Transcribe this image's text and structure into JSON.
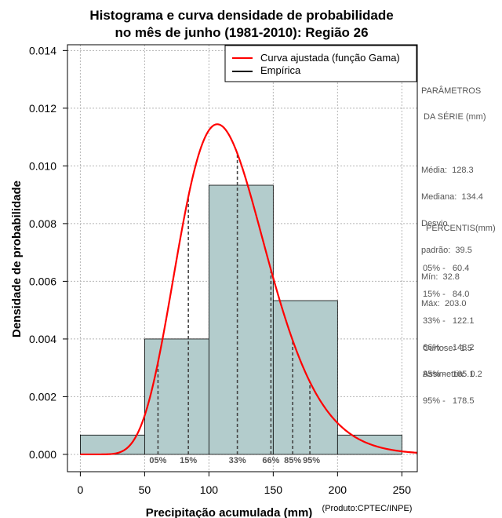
{
  "chart_data": {
    "type": "histogram",
    "title_lines": [
      "Histograma e curva densidade de probabilidade",
      "no mês de junho (1981-2010): Região 26"
    ],
    "xlabel": "Precipitação acumulada (mm)",
    "ylabel": "Densidade de probabilidade",
    "credit": "(Produto:CPTEC/INPE)",
    "xlim": [
      -10,
      262
    ],
    "ylim": [
      -0.0006,
      0.0142
    ],
    "x_ticks": [
      0,
      50,
      100,
      150,
      200,
      250
    ],
    "x_tick_labels": [
      "0",
      "50",
      "100",
      "150",
      "200",
      "250"
    ],
    "y_ticks": [
      0,
      0.002,
      0.004,
      0.006,
      0.008,
      0.01,
      0.012,
      0.014
    ],
    "y_tick_labels": [
      "0.000",
      "0.002",
      "0.004",
      "0.006",
      "0.008",
      "0.010",
      "0.012",
      "0.014"
    ],
    "grid": true,
    "bins": [
      {
        "x0": 0,
        "x1": 50,
        "density": 0.00067
      },
      {
        "x0": 50,
        "x1": 100,
        "density": 0.004
      },
      {
        "x0": 100,
        "x1": 150,
        "density": 0.00933
      },
      {
        "x0": 150,
        "x1": 200,
        "density": 0.00533
      },
      {
        "x0": 200,
        "x1": 250,
        "density": 0.00067
      }
    ],
    "fitted_curve": {
      "name": "Curva ajustada (função Gama)",
      "distribution": "gamma",
      "shape": 10.5,
      "scale": 11.21,
      "color": "#ff0000"
    },
    "empirical": {
      "name": "Empírica",
      "color": "#000000"
    },
    "percentile_markers": [
      {
        "label": "05%",
        "x": 60.4
      },
      {
        "label": "15%",
        "x": 84.0
      },
      {
        "label": "33%",
        "x": 122.1
      },
      {
        "label": "66%",
        "x": 148.2
      },
      {
        "label": "85%",
        "x": 165.1
      },
      {
        "label": "95%",
        "x": 178.5
      }
    ],
    "legend_position": "top-right",
    "bar_color": "#b3cccc"
  },
  "side_panel": {
    "params_title_1": "PARÂMETROS",
    "params_title_2": " DA SÉRIE (mm)",
    "media": "Média:  128.3",
    "mediana": "Mediana:  134.4",
    "desvio_1": "Desvio",
    "desvio_2": "padrão:  39.5",
    "min": "Mín:  32.8",
    "max": "Máx:  203.0",
    "percentis_title": "PERCENTIS(mm)",
    "p05": "05% -   60.4",
    "p15": "15% -   84.0",
    "p33": "33% -   122.1",
    "p66": "66% -   148.2",
    "p85": "85% -   165.1",
    "p95": "95% -   178.5",
    "curtose": "Curtose:  1.5",
    "assimetria": "Assimetria:  0.2"
  }
}
